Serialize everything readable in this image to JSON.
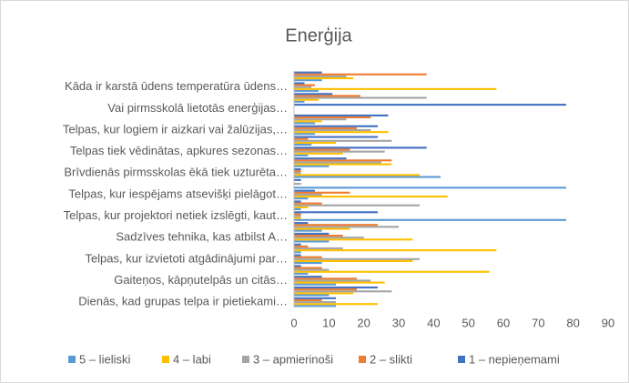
{
  "chart_data": {
    "type": "hbar",
    "title": "Enerģija",
    "categories": [
      "Dienās, kad grupas telpa ir pietiekami…",
      null,
      "Gaiteņos, kāpņutelpās un citās…",
      null,
      "Telpas, kur izvietoti atgādinājumi par…",
      null,
      "Sadzīves tehnika, kas atbilst A…",
      null,
      "Telpas, kur projektori netiek izslēgti, kaut…",
      null,
      "Telpas, kur iespējams atsevišķi pielāgot…",
      null,
      "Brīvdienās pirmsskolas ēkā tiek uzturēta…",
      null,
      "Telpas tiek vēdinātas, apkures sezonas…",
      null,
      "Telpas, kur logiem ir aizkari vai žalūzijas,…",
      null,
      "Vai pirmsskolā lietotās enerģijas…",
      null,
      "Kāda ir karstā ūdens temperatūra ūdens…",
      null
    ],
    "series": [
      {
        "name": "5 – lieliski",
        "color": "#5b9bd5",
        "values": [
          12,
          10,
          12,
          4,
          8,
          2,
          10,
          8,
          78,
          2,
          4,
          78,
          42,
          10,
          4,
          5,
          6,
          6,
          0,
          3,
          7,
          8
        ]
      },
      {
        "name": "4 – labi",
        "color": "#ffc000",
        "values": [
          24,
          17,
          26,
          56,
          34,
          58,
          34,
          16,
          2,
          4,
          44,
          0,
          36,
          28,
          14,
          12,
          27,
          8,
          0,
          7,
          58,
          17
        ]
      },
      {
        "name": "3 – apmierinoši",
        "color": "#a5a5a5",
        "values": [
          12,
          28,
          22,
          10,
          36,
          14,
          20,
          30,
          2,
          36,
          8,
          2,
          2,
          25,
          26,
          28,
          22,
          15,
          0,
          38,
          5,
          15
        ]
      },
      {
        "name": "2 – slikti",
        "color": "#ed7d31",
        "values": [
          8,
          18,
          18,
          8,
          8,
          4,
          14,
          24,
          2,
          8,
          16,
          0,
          2,
          28,
          16,
          4,
          18,
          22,
          0,
          19,
          6,
          38
        ]
      },
      {
        "name": "1 – nepieņemami",
        "color": "#4472c4",
        "values": [
          12,
          24,
          8,
          2,
          2,
          2,
          10,
          4,
          24,
          2,
          6,
          2,
          2,
          15,
          38,
          24,
          24,
          27,
          78,
          11,
          3,
          8
        ]
      }
    ],
    "xlim": [
      0,
      90
    ],
    "xticks": [
      0,
      10,
      20,
      30,
      40,
      50,
      60,
      70,
      80,
      90
    ],
    "grid": false,
    "legend": "bottom"
  }
}
